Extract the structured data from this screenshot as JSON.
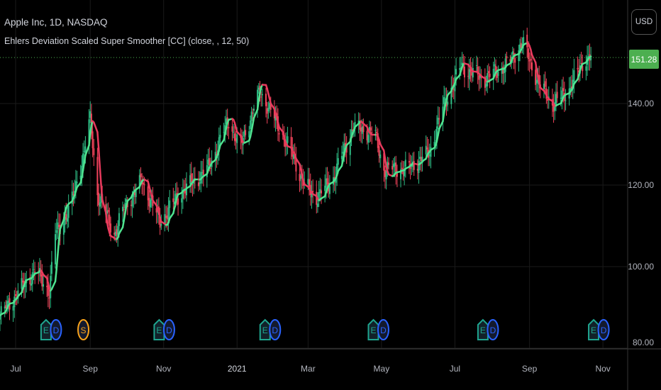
{
  "header": {
    "symbol_title": "Apple Inc, 1D, NASDAQ",
    "indicator_label": "Ehlers Deviation Scaled Super Smoother [CC] (close, , 12, 50)"
  },
  "price_scale": {
    "currency": "USD",
    "last_price": "151.28",
    "labels": [
      "140.00",
      "120.00",
      "100.00",
      "80.00"
    ]
  },
  "time_axis": {
    "labels": [
      {
        "text": "Jul",
        "date": "2020-07-01"
      },
      {
        "text": "Sep",
        "date": "2020-09-01"
      },
      {
        "text": "Nov",
        "date": "2020-11-01"
      },
      {
        "text": "2021",
        "date": "2021-01-01"
      },
      {
        "text": "Mar",
        "date": "2021-03-01"
      },
      {
        "text": "May",
        "date": "2021-05-01"
      },
      {
        "text": "Jul",
        "date": "2021-07-01"
      },
      {
        "text": "Sep",
        "date": "2021-09-01"
      },
      {
        "text": "Nov",
        "date": "2021-11-01"
      }
    ]
  },
  "events": [
    {
      "date": "2020-07-31",
      "types": [
        "E",
        "D"
      ]
    },
    {
      "date": "2020-08-31",
      "types": [
        "S"
      ]
    },
    {
      "date": "2020-11-02",
      "types": [
        "E",
        "D"
      ]
    },
    {
      "date": "2021-01-29",
      "types": [
        "E",
        "D"
      ]
    },
    {
      "date": "2021-04-29",
      "types": [
        "E",
        "D"
      ]
    },
    {
      "date": "2021-07-29",
      "types": [
        "E",
        "D"
      ]
    },
    {
      "date": "2021-10-29",
      "types": [
        "E",
        "D"
      ]
    }
  ],
  "colors": {
    "up": "#2ebd85",
    "down": "#f0435a",
    "smoother_up": "#4fe38f",
    "smoother_down": "#e93a5d",
    "last_price": "#4caf50",
    "earnings": "#1fa58f",
    "dividend": "#2962ff",
    "split": "#f7a21b"
  },
  "chart_data": {
    "type": "candlestick",
    "title": "Apple Inc, 1D, NASDAQ",
    "indicator": "Ehlers Deviation Scaled Super Smoother [CC]",
    "indicator_params": {
      "source": "close",
      "length": 12,
      "period": 50
    },
    "ylim": [
      78,
      160
    ],
    "y_ticks": [
      80,
      100,
      120,
      140
    ],
    "grid": true,
    "close_keypoints": [
      [
        "2020-06-18",
        88
      ],
      [
        "2020-07-17",
        99
      ],
      [
        "2020-07-29",
        94
      ],
      [
        "2020-08-03",
        108
      ],
      [
        "2020-08-15",
        114
      ],
      [
        "2020-08-26",
        127
      ],
      [
        "2020-09-01",
        136
      ],
      [
        "2020-09-07",
        118
      ],
      [
        "2020-09-21",
        108
      ],
      [
        "2020-09-30",
        115
      ],
      [
        "2020-10-14",
        121
      ],
      [
        "2020-10-29",
        111
      ],
      [
        "2020-11-15",
        118
      ],
      [
        "2020-12-08",
        124
      ],
      [
        "2020-12-25",
        136
      ],
      [
        "2021-01-03",
        129
      ],
      [
        "2021-01-20",
        143
      ],
      [
        "2021-01-31",
        137
      ],
      [
        "2021-02-15",
        128
      ],
      [
        "2021-02-26",
        120
      ],
      [
        "2021-03-08",
        117
      ],
      [
        "2021-03-21",
        121
      ],
      [
        "2021-04-07",
        134
      ],
      [
        "2021-04-25",
        133
      ],
      [
        "2021-05-03",
        124
      ],
      [
        "2021-05-23",
        124
      ],
      [
        "2021-06-10",
        128
      ],
      [
        "2021-06-21",
        139
      ],
      [
        "2021-07-06",
        149
      ],
      [
        "2021-07-26",
        146
      ],
      [
        "2021-08-15",
        150
      ],
      [
        "2021-08-26",
        155
      ],
      [
        "2021-09-10",
        144
      ],
      [
        "2021-09-21",
        140
      ],
      [
        "2021-10-03",
        143
      ],
      [
        "2021-10-17",
        151
      ],
      [
        "2021-10-24",
        151.28
      ]
    ],
    "last_value": 151.28
  }
}
